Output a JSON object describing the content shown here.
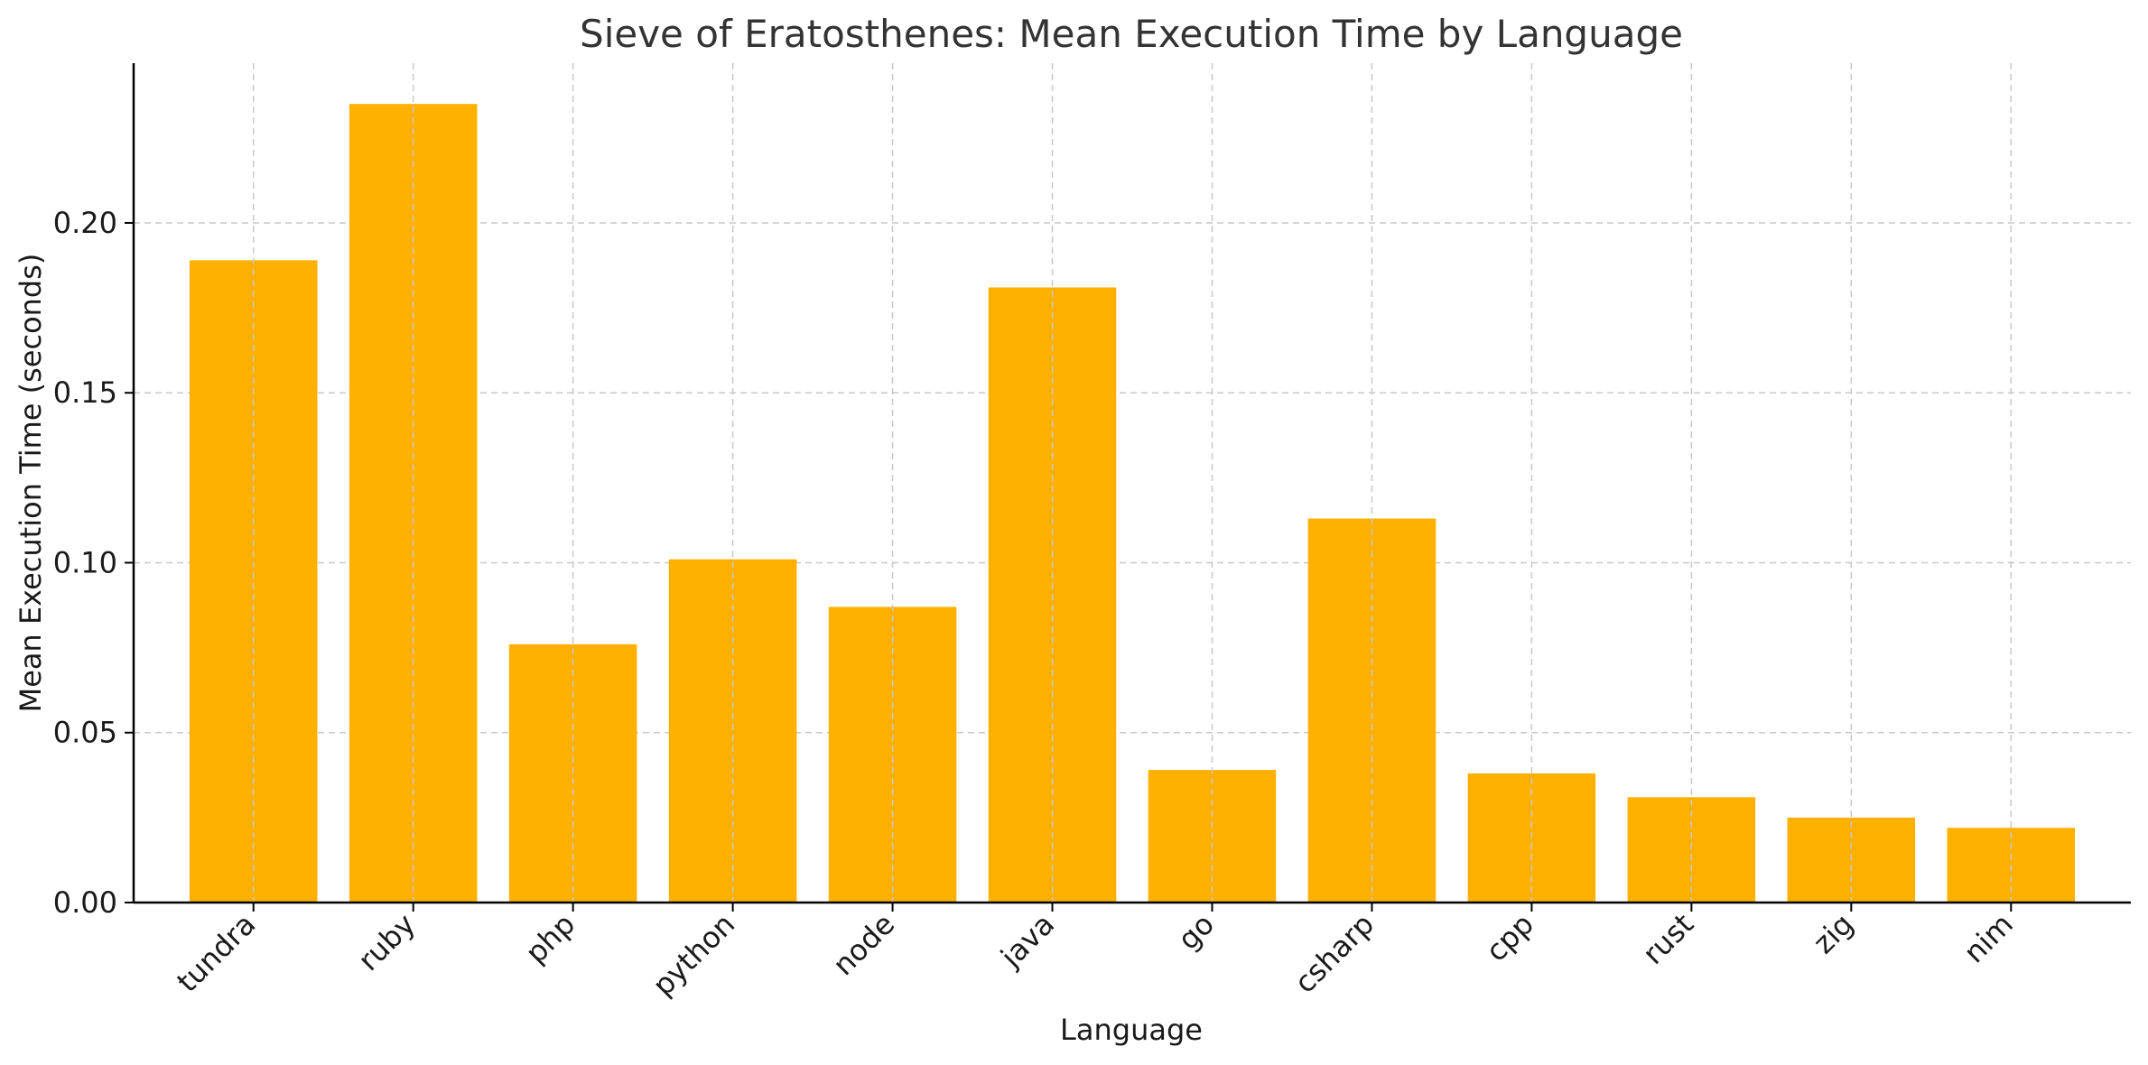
{
  "chart_data": {
    "type": "bar",
    "title": "Sieve of Eratosthenes: Mean Execution Time by Language",
    "xlabel": "Language",
    "ylabel": "Mean Execution Time (seconds)",
    "categories": [
      "tundra",
      "ruby",
      "php",
      "python",
      "node",
      "java",
      "go",
      "csharp",
      "cpp",
      "rust",
      "zig",
      "nim"
    ],
    "values": [
      0.189,
      0.235,
      0.076,
      0.101,
      0.087,
      0.181,
      0.039,
      0.113,
      0.038,
      0.031,
      0.025,
      0.022
    ],
    "ylim": [
      0,
      0.247
    ],
    "yticks": [
      0.0,
      0.05,
      0.1,
      0.15,
      0.2
    ],
    "ytick_labels": [
      "0.00",
      "0.05",
      "0.10",
      "0.15",
      "0.20"
    ],
    "grid": true,
    "bar_color": "#FFB000",
    "legend": "none"
  }
}
